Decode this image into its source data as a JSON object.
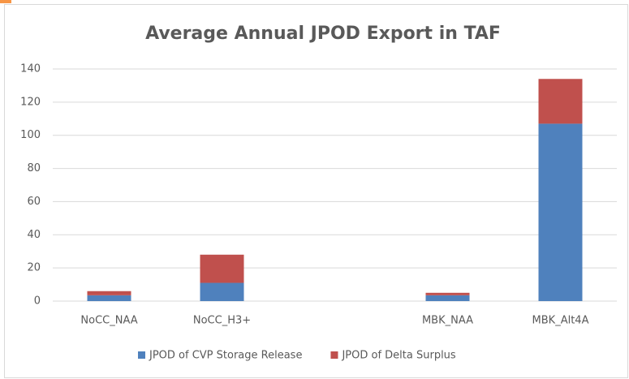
{
  "chart_data": {
    "type": "stacked_bar",
    "title": "Average Annual JPOD Export in TAF",
    "categories": [
      "NoCC_NAA",
      "NoCC_H3+",
      null,
      "MBK_NAA",
      "MBK_Alt4A"
    ],
    "series": [
      {
        "name": "JPOD of CVP Storage Release",
        "color": "#4f81bd",
        "values": [
          3.5,
          11,
          null,
          3.5,
          107
        ]
      },
      {
        "name": "JPOD of Delta Surplus",
        "color": "#c0504d",
        "values": [
          2.5,
          17,
          null,
          1.5,
          27
        ]
      }
    ],
    "ylim": [
      0,
      140
    ],
    "yticks": [
      0,
      20,
      40,
      60,
      80,
      100,
      120,
      140
    ],
    "grid": true,
    "legend": "bottom"
  }
}
